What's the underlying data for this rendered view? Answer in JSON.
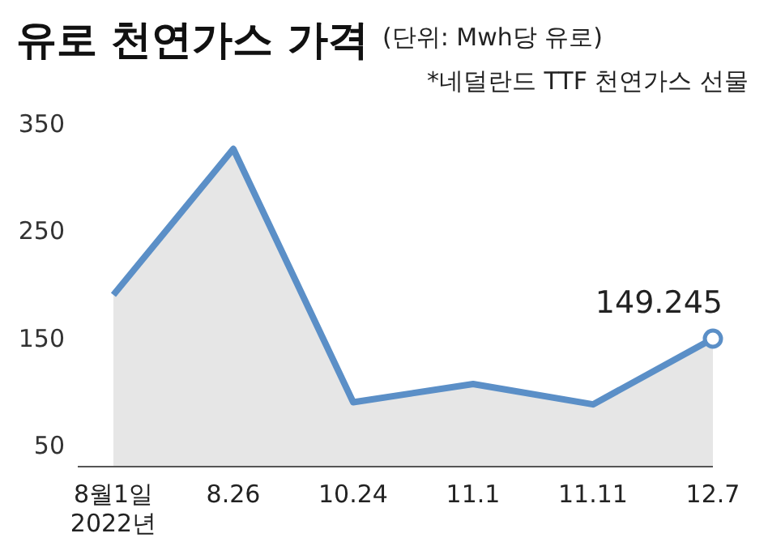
{
  "chart_data": {
    "type": "area",
    "title": "유로 천연가스 가격",
    "subtitle": "(단위: Mwh당 유로)",
    "annotations": [
      "*네덜란드 TTF 천연가스 선물"
    ],
    "categories": [
      "8월1일\n2022년",
      "8.26",
      "10.24",
      "11.1",
      "11.11",
      "12.7"
    ],
    "values": [
      190,
      326,
      90,
      107,
      88,
      149.245
    ],
    "value_labels": [
      null,
      null,
      null,
      null,
      null,
      "149.245"
    ],
    "color": "#5b8fc7",
    "ylim": [
      30,
      350
    ],
    "yticks": [
      50,
      150,
      250,
      350
    ],
    "grid": false,
    "marker": "none"
  }
}
